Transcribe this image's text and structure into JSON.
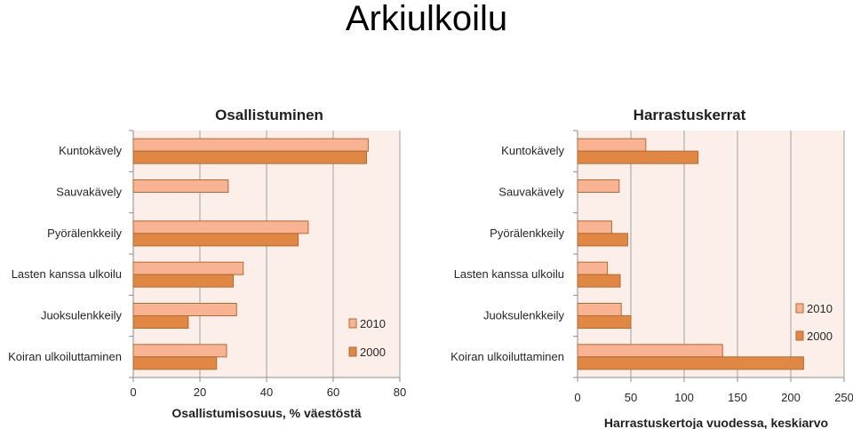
{
  "page_title": "Arkiulkoilu",
  "colors": {
    "series_2010": "#f8b393",
    "series_2000": "#e08744",
    "bar_border": "#b46a30",
    "plot_bg": "#fcefe9",
    "grid": "#a0a0a0",
    "axis": "#8c8c8c"
  },
  "chart_data": [
    {
      "type": "bar",
      "orientation": "horizontal",
      "title": "Osallistuminen",
      "xlabel": "Osallistumisosuus, % väestöstä",
      "ylabel": "",
      "xlim": [
        0,
        80
      ],
      "xticks": [
        0,
        20,
        40,
        60,
        80
      ],
      "grid": true,
      "legend_position": "bottom-right",
      "categories": [
        "Kuntokävely",
        "Sauvakävely",
        "Pyörälenkkeily",
        "Lasten kanssa ulkoilu",
        "Juoksulenkkeily",
        "Koiran ulkoiluttaminen"
      ],
      "series": [
        {
          "name": "2010",
          "values": [
            70.5,
            28.5,
            52.5,
            33,
            31,
            28
          ]
        },
        {
          "name": "2000",
          "values": [
            70,
            null,
            49.5,
            30,
            16.5,
            25
          ]
        }
      ]
    },
    {
      "type": "bar",
      "orientation": "horizontal",
      "title": "Harrastuskerrat",
      "xlabel": "Harrastuskertoja vuodessa, keskiarvo",
      "ylabel": "",
      "xlim": [
        0,
        250
      ],
      "xticks": [
        0,
        50,
        100,
        150,
        200,
        250
      ],
      "grid": true,
      "legend_position": "top-right",
      "categories": [
        "Kuntokävely",
        "Sauvakävely",
        "Pyörälenkkeily",
        "Lasten kanssa ulkoilu",
        "Juoksulenkkeily",
        "Koiran ulkoiluttaminen"
      ],
      "series": [
        {
          "name": "2010",
          "values": [
            64,
            39,
            32,
            28,
            41,
            136
          ]
        },
        {
          "name": "2000",
          "values": [
            113,
            null,
            47,
            40,
            50,
            212
          ]
        }
      ]
    }
  ]
}
